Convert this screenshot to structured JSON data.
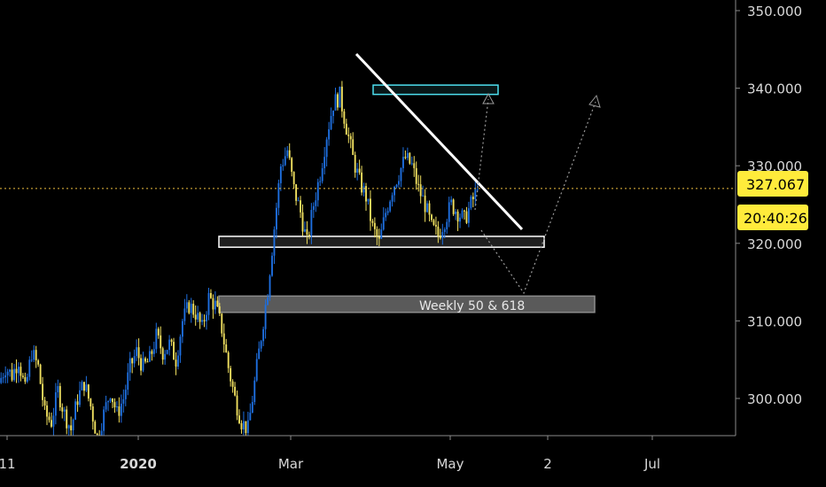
{
  "chart_data": {
    "type": "candlestick",
    "x_ticks": [
      {
        "label": "11",
        "bold": false
      },
      {
        "label": "2020",
        "bold": true
      },
      {
        "label": "Mar",
        "bold": false
      },
      {
        "label": "May",
        "bold": false
      },
      {
        "label": "2",
        "bold": false
      },
      {
        "label": "Jul",
        "bold": false
      }
    ],
    "y_ticks": [
      {
        "value": 300,
        "label": "300.000"
      },
      {
        "value": 310,
        "label": "310.000"
      },
      {
        "value": 320,
        "label": "320.000"
      },
      {
        "value": 330,
        "label": "330.000"
      },
      {
        "value": 340,
        "label": "340.000"
      },
      {
        "value": 350,
        "label": "350.000"
      }
    ],
    "ylim": [
      294,
      351
    ],
    "last_price": {
      "value": 327.067,
      "label": "327.067",
      "countdown": "20:40:26"
    },
    "zones": [
      {
        "name": "resistance",
        "from": 339.2,
        "to": 340.4,
        "label": ""
      },
      {
        "name": "support",
        "from": 319.5,
        "to": 320.9,
        "label": ""
      },
      {
        "name": "weekly-fib",
        "from": 311.1,
        "to": 313.2,
        "label": "Weekly 50 & 618"
      }
    ],
    "close_path": [
      302,
      304,
      303,
      305,
      301,
      306,
      304,
      298,
      297,
      301,
      298,
      296,
      300,
      302,
      299,
      295,
      298,
      301,
      298,
      300,
      304,
      306,
      304,
      305,
      308,
      306,
      307,
      305,
      310,
      312,
      311,
      309,
      313,
      312,
      309,
      304,
      300,
      297,
      296,
      302,
      308,
      314,
      322,
      330,
      332,
      327,
      324,
      320,
      325,
      329,
      334,
      338,
      339,
      335,
      331,
      328,
      326,
      322,
      320,
      324,
      327,
      329,
      331,
      330,
      327,
      325,
      322,
      321,
      323,
      325,
      324,
      323,
      325,
      327
    ],
    "colors": {
      "background": "#000000",
      "up": "#1e6fe0",
      "down": "#f0e060",
      "price_line": "#f0c040",
      "price_tag": "#ffeb3b",
      "resistance": "#4ee0f0",
      "support": "#ffffff",
      "trendline": "#ffffff",
      "projection": "#9a9a9a"
    }
  }
}
